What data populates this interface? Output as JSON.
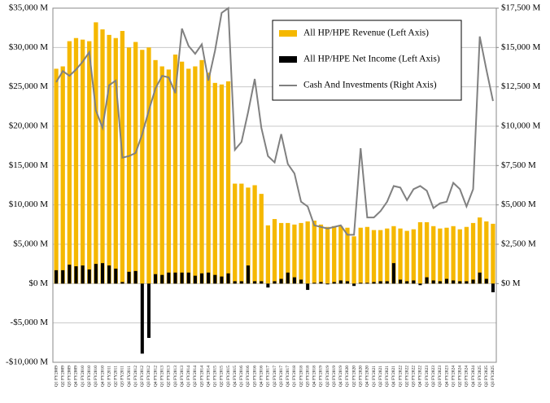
{
  "chart_data": {
    "type": "bar_line",
    "categories": [
      "Q1 FY2009",
      "Q2 FY2009",
      "Q3 FY2009",
      "Q4 FY2009",
      "Q1 FY2010",
      "Q2 FY2010",
      "Q3 FY2010",
      "Q4 FY2010",
      "Q1 FY2011",
      "Q2 FY2011",
      "Q3 FY2011",
      "Q4 FY2011",
      "Q1 FY2012",
      "Q2 FY2012",
      "Q3 FY2012",
      "Q4 FY2012",
      "Q1 FY2013",
      "Q2 FY2013",
      "Q3 FY2013",
      "Q4 FY2013",
      "Q1 FY2014",
      "Q2 FY2014",
      "Q3 FY2014",
      "Q4 FY2014",
      "Q1 FY2015",
      "Q2 FY2015",
      "Q3 FY2015",
      "Q4 FY2015",
      "Q1 FY2016",
      "Q2 FY2016",
      "Q3 FY2016",
      "Q4 FY2016",
      "Q1 FY2017",
      "Q2 FY2017",
      "Q3 FY2017",
      "Q4 FY2017",
      "Q1 FY2018",
      "Q2 FY2018",
      "Q3 FY2018",
      "Q4 FY2018",
      "Q1 FY2019",
      "Q2 FY2019",
      "Q3 FY2019",
      "Q4 FY2019",
      "Q1 FY2020",
      "Q2 FY2020",
      "Q3 FY2020",
      "Q4 FY2020",
      "Q1 FY2021",
      "Q2 FY2021",
      "Q3 FY2021",
      "Q4 FY2021",
      "Q1 FY2022",
      "Q2 FY2022",
      "Q3 FY2022",
      "Q4 FY2022",
      "Q1 FY2023",
      "Q2 FY2023",
      "Q3 FY2023",
      "Q4 FY2023",
      "Q1 FY2024",
      "Q2 FY2024",
      "Q3 FY2024",
      "Q4 FY2024",
      "Q1 FY2025",
      "Q2 FY2025",
      "Q3 FY2025"
    ],
    "series": [
      {
        "name": "All HP/HPE Revenue (Left Axis)",
        "kind": "bar",
        "color": "#f5b800",
        "values": [
          27300,
          27600,
          30800,
          31200,
          31000,
          30800,
          33200,
          32300,
          31600,
          31200,
          32100,
          30000,
          30700,
          29700,
          30000,
          28400,
          27600,
          27200,
          29100,
          28200,
          27300,
          27600,
          28400,
          26800,
          25500,
          25300,
          25700,
          12700,
          12700,
          12200,
          12500,
          11400,
          7400,
          8200,
          7700,
          7700,
          7500,
          7700,
          7900,
          8000,
          7500,
          7200,
          7300,
          7300,
          7100,
          6000,
          7100,
          7200,
          6800,
          6800,
          7000,
          7300,
          7000,
          6700,
          6900,
          7800,
          7800,
          7300,
          7000,
          7100,
          7300,
          6900,
          7200,
          7700,
          8400,
          7900,
          7600
        ]
      },
      {
        "name": "All HP/HPE Net Income (Left Axis)",
        "kind": "bar",
        "color": "#000000",
        "values": [
          1700,
          1700,
          2400,
          2200,
          2300,
          1800,
          2500,
          2600,
          2300,
          1900,
          200,
          1500,
          1600,
          -8900,
          -6900,
          1200,
          1100,
          1400,
          1400,
          1400,
          1400,
          1000,
          1300,
          1400,
          1100,
          900,
          1300,
          300,
          300,
          2300,
          300,
          300,
          -500,
          300,
          600,
          1400,
          800,
          500,
          -800,
          100,
          200,
          -100,
          200,
          400,
          300,
          -300,
          100,
          100,
          200,
          300,
          300,
          2600,
          500,
          300,
          400,
          -200,
          800,
          400,
          300,
          600,
          400,
          300,
          300,
          500,
          1400,
          600,
          -1100
        ]
      },
      {
        "name": "Cash And Investments (Right Axis)",
        "kind": "line",
        "axis": "y2",
        "color": "#808080",
        "values": [
          12800,
          13500,
          13200,
          13600,
          14100,
          14700,
          11000,
          9900,
          12600,
          12900,
          8000,
          8100,
          8300,
          9500,
          11000,
          12400,
          13200,
          13100,
          12100,
          16200,
          15100,
          14600,
          15200,
          12900,
          14800,
          17200,
          17500,
          8500,
          9000,
          10900,
          13000,
          9900,
          8100,
          7700,
          9500,
          7600,
          7000,
          5200,
          4900,
          3700,
          3600,
          3500,
          3600,
          3700,
          3100,
          3100,
          8600,
          4200,
          4200,
          4600,
          5200,
          6200,
          6100,
          5300,
          6000,
          6200,
          5900,
          4800,
          5100,
          5200,
          6400,
          6000,
          4900,
          6000,
          15700,
          13600,
          11600
        ]
      }
    ],
    "ylim": [
      -10000,
      35000
    ],
    "yticks": [
      {
        "value": -10000,
        "label": "-$10,000 M"
      },
      {
        "value": -5000,
        "label": "-$5,000 M"
      },
      {
        "value": 0,
        "label": "$0 M"
      },
      {
        "value": 5000,
        "label": "$5,000 M"
      },
      {
        "value": 10000,
        "label": "$10,000 M"
      },
      {
        "value": 15000,
        "label": "$15,000 M"
      },
      {
        "value": 20000,
        "label": "$20,000 M"
      },
      {
        "value": 25000,
        "label": "$25,000 M"
      },
      {
        "value": 30000,
        "label": "$30,000 M"
      },
      {
        "value": 35000,
        "label": "$35,000 M"
      }
    ],
    "y2lim": [
      -5000,
      17500
    ],
    "y2ticks": [
      {
        "value": 0,
        "label": "$0 M"
      },
      {
        "value": 2500,
        "label": "$2,500 M"
      },
      {
        "value": 5000,
        "label": "$5,000 M"
      },
      {
        "value": 7500,
        "label": "$7,500 M"
      },
      {
        "value": 10000,
        "label": "$10,000 M"
      },
      {
        "value": 12500,
        "label": "$12,500 M"
      },
      {
        "value": 15000,
        "label": "$15,000 M"
      },
      {
        "value": 17500,
        "label": "$17,500 M"
      }
    ],
    "grid": true,
    "legend": "top-right"
  }
}
